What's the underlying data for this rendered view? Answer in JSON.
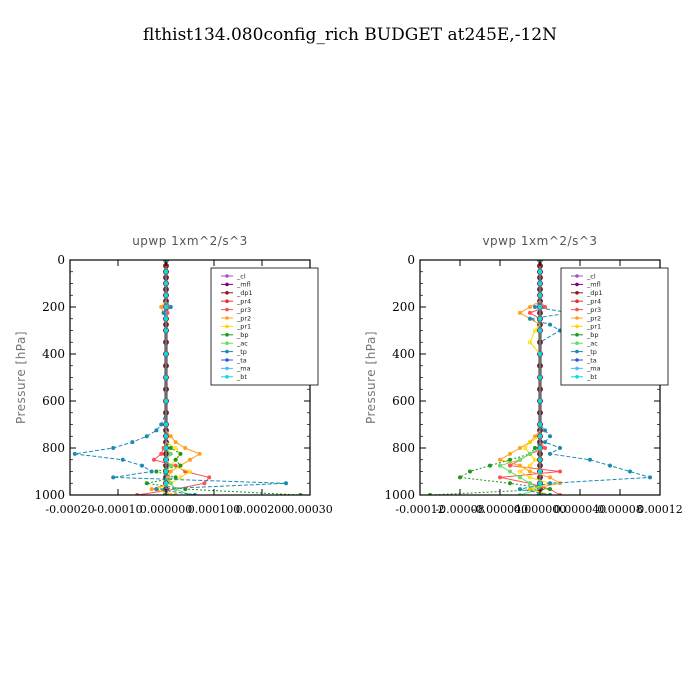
{
  "figure": {
    "title": "flthist134.080config_rich  BUDGET at245E,-12N"
  },
  "legend_entries": [
    "_cl",
    "_mfl",
    "_dp1",
    "_pr4",
    "_pr3",
    "_pr2",
    "_pr1",
    "_bp",
    "_ac",
    "_tp",
    "_ta",
    "_ma",
    "_bt"
  ],
  "colors": {
    "_cl": "#9b59b6",
    "_mfl": "#800080",
    "_dp1": "#8b1a1a",
    "_pr4": "#e03030",
    "_pr3": "#ff5050",
    "_pr2": "#ffa020",
    "_pr1": "#ffd700",
    "_bp": "#1a9a1a",
    "_ac": "#66dd66",
    "_tp": "#1a8ab4",
    "_ta": "#3355cc",
    "_ma": "#40c0ff",
    "_bt": "#00e0e0"
  },
  "chart_data": [
    {
      "type": "line",
      "title": "upwp   1xm^2/s^3",
      "ylabel": "Pressure [hPa]",
      "xlabel": "",
      "xlim": [
        -0.0002,
        0.0003
      ],
      "ylim": [
        1000,
        0
      ],
      "xticks": [
        "-0.00020",
        "-0.00010",
        "0.000000",
        "0.000100",
        "0.000200",
        "0.00030"
      ],
      "yticks": [
        "0",
        "200",
        "400",
        "600",
        "800",
        "1000"
      ],
      "pressure": [
        0,
        25,
        50,
        75,
        100,
        125,
        150,
        175,
        200,
        225,
        250,
        275,
        300,
        350,
        400,
        450,
        500,
        550,
        600,
        650,
        700,
        725,
        750,
        775,
        800,
        825,
        850,
        875,
        900,
        925,
        950,
        975,
        1000
      ],
      "series": [
        {
          "name": "_cl",
          "values": [
            0,
            0,
            0,
            0,
            0,
            0,
            0,
            0,
            0,
            0,
            0,
            0,
            0,
            0,
            0,
            0,
            0,
            0,
            0,
            0,
            0,
            0,
            0,
            0,
            0,
            0,
            0,
            0,
            0,
            0,
            0,
            0,
            0
          ]
        },
        {
          "name": "_mfl",
          "values": [
            0,
            0,
            0,
            0,
            0,
            0,
            0,
            0,
            0,
            0,
            0,
            0,
            0,
            0,
            0,
            0,
            0,
            0,
            0,
            0,
            0,
            0,
            0,
            0,
            0,
            0,
            0,
            0,
            0,
            0,
            0,
            0,
            0
          ]
        },
        {
          "name": "_dp1",
          "values": [
            0,
            0,
            0,
            0,
            0,
            0,
            0,
            0,
            0,
            0,
            0,
            0,
            0,
            0,
            0,
            0,
            0,
            0,
            0,
            0,
            0,
            0,
            0,
            0,
            0,
            0,
            0,
            0,
            0,
            0,
            0,
            0,
            0
          ]
        },
        {
          "name": "_pr4",
          "values": [
            0,
            0,
            0,
            0,
            0,
            0,
            0,
            0,
            0,
            0,
            0,
            0,
            0,
            0,
            0,
            0,
            0,
            0,
            0,
            0,
            0,
            0,
            0,
            0,
            0,
            0,
            0,
            0,
            0,
            0,
            0,
            0,
            0
          ]
        },
        {
          "name": "_pr3",
          "values": [
            0,
            0,
            0,
            0,
            0,
            0,
            0,
            0,
            5e-06,
            3e-06,
            0,
            0,
            0,
            0,
            0,
            0,
            0,
            0,
            0,
            0,
            0,
            0,
            0,
            0,
            -5e-06,
            -1e-05,
            -2.5e-05,
            2e-05,
            4e-05,
            9e-05,
            8e-05,
            2e-05,
            -6e-05
          ]
        },
        {
          "name": "_pr2",
          "values": [
            0,
            0,
            0,
            0,
            0,
            0,
            0,
            0,
            -1e-05,
            -5e-06,
            0,
            0,
            0,
            0,
            0,
            0,
            0,
            0,
            0,
            0,
            0,
            0,
            1e-05,
            2e-05,
            4e-05,
            7e-05,
            5e-05,
            3e-05,
            1e-05,
            5e-06,
            1e-05,
            -3e-05,
            2e-05
          ]
        },
        {
          "name": "_pr1",
          "values": [
            0,
            0,
            0,
            0,
            0,
            0,
            0,
            0,
            0,
            0,
            0,
            0,
            0,
            0,
            0,
            0,
            0,
            0,
            0,
            0,
            0,
            0,
            0,
            0,
            2e-05,
            3e-05,
            2e-05,
            1e-05,
            5e-05,
            3e-05,
            1e-05,
            -2e-05,
            1e-05
          ]
        },
        {
          "name": "_bp",
          "values": [
            0,
            0,
            0,
            0,
            0,
            0,
            0,
            0,
            0,
            0,
            0,
            0,
            0,
            0,
            0,
            0,
            0,
            0,
            0,
            0,
            0,
            0,
            0,
            0,
            1e-05,
            3e-05,
            2e-05,
            3e-05,
            -2e-05,
            2e-05,
            -4e-05,
            4e-05,
            0.00028
          ]
        },
        {
          "name": "_ac",
          "values": [
            0,
            0,
            0,
            0,
            0,
            0,
            0,
            0,
            0,
            0,
            0,
            0,
            0,
            0,
            0,
            0,
            0,
            0,
            0,
            0,
            0,
            0,
            0,
            0,
            0,
            1e-05,
            0,
            1e-05,
            0,
            0,
            1e-05,
            2e-05,
            5e-05
          ]
        },
        {
          "name": "_tp",
          "values": [
            0,
            0,
            0,
            0,
            0,
            0,
            0,
            0,
            1e-05,
            -5e-06,
            0,
            0,
            0,
            0,
            0,
            0,
            0,
            0,
            0,
            0,
            -1e-05,
            -2e-05,
            -4e-05,
            -7e-05,
            -0.00011,
            -0.00019,
            -9e-05,
            -5e-05,
            -3e-05,
            -0.00011,
            0.00025,
            -2e-05,
            6e-05
          ]
        },
        {
          "name": "_ta",
          "values": [
            0,
            0,
            0,
            0,
            0,
            0,
            0,
            0,
            0,
            0,
            0,
            0,
            0,
            0,
            0,
            0,
            0,
            0,
            0,
            0,
            0,
            0,
            0,
            0,
            0,
            0,
            0,
            0,
            0,
            0,
            0,
            0,
            0
          ]
        },
        {
          "name": "_ma",
          "values": [
            0,
            0,
            0,
            0,
            0,
            0,
            0,
            0,
            0,
            0,
            0,
            0,
            0,
            0,
            0,
            0,
            0,
            0,
            0,
            0,
            0,
            0,
            0,
            0,
            0,
            0,
            0,
            0,
            0,
            0,
            0,
            0,
            0
          ]
        },
        {
          "name": "_bt",
          "values": [
            0,
            0,
            0,
            0,
            0,
            0,
            0,
            0,
            0,
            0,
            0,
            0,
            0,
            0,
            0,
            0,
            0,
            0,
            0,
            0,
            0,
            0,
            0,
            0,
            0,
            0,
            0,
            0,
            0,
            0,
            0,
            0,
            0
          ]
        }
      ]
    },
    {
      "type": "line",
      "title": "vpwp   1xm^2/s^3",
      "ylabel": "Pressure [hPa]",
      "xlabel": "",
      "xlim": [
        -0.00012,
        0.00012
      ],
      "ylim": [
        1000,
        0
      ],
      "xticks": [
        "-0.00012",
        "-0.00008",
        "-0.000040",
        "0.000000",
        "0.000040",
        "0.00008",
        "0.00012"
      ],
      "yticks": [
        "0",
        "200",
        "400",
        "600",
        "800",
        "1000"
      ],
      "pressure": [
        0,
        25,
        50,
        75,
        100,
        125,
        150,
        175,
        200,
        225,
        250,
        275,
        300,
        350,
        400,
        450,
        500,
        550,
        600,
        650,
        700,
        725,
        750,
        775,
        800,
        825,
        850,
        875,
        900,
        925,
        950,
        975,
        1000
      ],
      "series": [
        {
          "name": "_cl",
          "values": [
            0,
            0,
            0,
            0,
            0,
            0,
            0,
            0,
            0,
            0,
            0,
            0,
            0,
            0,
            0,
            0,
            0,
            0,
            0,
            0,
            0,
            0,
            0,
            0,
            0,
            0,
            0,
            0,
            0,
            0,
            0,
            0,
            0
          ]
        },
        {
          "name": "_mfl",
          "values": [
            0,
            0,
            0,
            0,
            0,
            0,
            0,
            0,
            0,
            0,
            0,
            0,
            0,
            0,
            0,
            0,
            0,
            0,
            0,
            0,
            0,
            0,
            0,
            0,
            0,
            0,
            0,
            0,
            0,
            0,
            0,
            0,
            0
          ]
        },
        {
          "name": "_dp1",
          "values": [
            0,
            0,
            0,
            0,
            0,
            0,
            0,
            0,
            0,
            0,
            0,
            0,
            0,
            0,
            0,
            0,
            0,
            0,
            0,
            0,
            0,
            0,
            0,
            0,
            0,
            0,
            0,
            0,
            0,
            0,
            0,
            0,
            0
          ]
        },
        {
          "name": "_pr4",
          "values": [
            0,
            0,
            0,
            0,
            0,
            0,
            0,
            0,
            0,
            0,
            0,
            0,
            0,
            0,
            0,
            0,
            0,
            0,
            0,
            0,
            0,
            0,
            0,
            0,
            0,
            0,
            0,
            0,
            0,
            0,
            0,
            0,
            0
          ]
        },
        {
          "name": "_pr3",
          "values": [
            0,
            0,
            0,
            0,
            0,
            0,
            0,
            0,
            5e-06,
            -1e-05,
            0,
            0,
            0,
            0,
            0,
            0,
            0,
            0,
            0,
            0,
            0,
            0,
            0,
            0,
            5e-06,
            -1e-05,
            -2e-05,
            -3e-05,
            2e-05,
            -4e-05,
            -1e-05,
            1e-05,
            2e-05
          ]
        },
        {
          "name": "_pr2",
          "values": [
            0,
            0,
            0,
            0,
            0,
            0,
            0,
            0,
            -1e-05,
            -2e-05,
            -1e-05,
            0,
            0,
            0,
            0,
            0,
            0,
            0,
            0,
            0,
            0,
            0,
            -5e-06,
            -1e-05,
            -2e-05,
            -3e-05,
            -4e-05,
            -2e-05,
            -1e-05,
            1e-05,
            2e-05,
            -1e-05,
            1e-05
          ]
        },
        {
          "name": "_pr1",
          "values": [
            0,
            0,
            0,
            0,
            0,
            0,
            0,
            0,
            0,
            0,
            0,
            0,
            -5e-06,
            -1e-05,
            0,
            0,
            0,
            0,
            0,
            0,
            0,
            0,
            0,
            -1e-05,
            -1.5e-05,
            -1e-05,
            -5e-06,
            -1e-05,
            -2e-05,
            -1e-05,
            1e-05,
            -1e-05,
            1e-05
          ]
        },
        {
          "name": "_bp",
          "values": [
            0,
            0,
            0,
            0,
            0,
            0,
            0,
            0,
            0,
            0,
            0,
            0,
            0,
            0,
            0,
            0,
            0,
            0,
            0,
            0,
            0,
            0,
            0,
            0,
            -5e-06,
            -1e-05,
            -3e-05,
            -5e-05,
            -7e-05,
            -8e-05,
            -3e-05,
            1e-05,
            -0.00011
          ]
        },
        {
          "name": "_ac",
          "values": [
            0,
            0,
            0,
            0,
            0,
            0,
            0,
            0,
            0,
            0,
            0,
            0,
            0,
            0,
            0,
            0,
            0,
            0,
            0,
            0,
            0,
            0,
            0,
            0,
            0,
            -1e-05,
            -2e-05,
            -4e-05,
            -3e-05,
            -2e-05,
            -1e-05,
            0,
            -2e-05
          ]
        },
        {
          "name": "_tp",
          "values": [
            0,
            0,
            0,
            0,
            0,
            0,
            0,
            0,
            -5e-06,
            3e-05,
            -1e-05,
            1e-05,
            2e-05,
            0,
            0,
            0,
            0,
            0,
            0,
            0,
            0,
            5e-06,
            1e-05,
            5e-06,
            2e-05,
            1e-05,
            5e-05,
            7e-05,
            9e-05,
            0.00011,
            1e-05,
            -2e-05,
            1e-05
          ]
        },
        {
          "name": "_ta",
          "values": [
            0,
            0,
            0,
            0,
            0,
            0,
            0,
            0,
            0,
            0,
            0,
            0,
            0,
            0,
            0,
            0,
            0,
            0,
            0,
            0,
            0,
            0,
            0,
            0,
            0,
            0,
            0,
            0,
            0,
            0,
            0,
            0,
            0
          ]
        },
        {
          "name": "_ma",
          "values": [
            0,
            0,
            0,
            0,
            0,
            0,
            0,
            0,
            0,
            0,
            0,
            0,
            0,
            0,
            0,
            0,
            0,
            0,
            0,
            0,
            0,
            0,
            0,
            0,
            0,
            0,
            0,
            0,
            0,
            0,
            0,
            0,
            0
          ]
        },
        {
          "name": "_bt",
          "values": [
            0,
            0,
            0,
            0,
            0,
            0,
            0,
            0,
            0,
            0,
            0,
            0,
            0,
            0,
            0,
            0,
            0,
            0,
            0,
            0,
            0,
            0,
            0,
            0,
            0,
            0,
            0,
            0,
            0,
            0,
            0,
            0,
            0
          ]
        }
      ]
    }
  ]
}
